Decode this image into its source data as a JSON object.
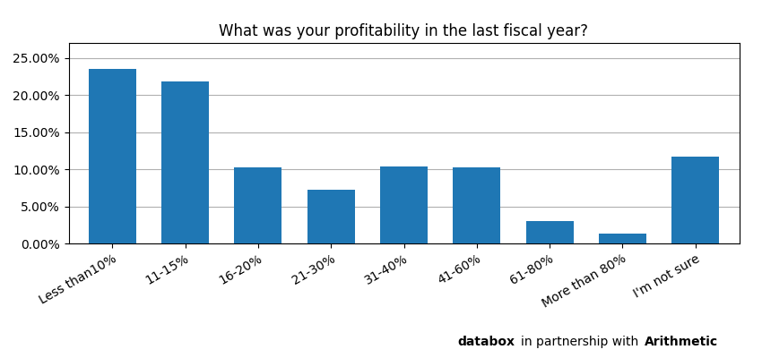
{
  "chart_data": {
    "type": "bar",
    "title": "What was your profitability in the last fiscal year?",
    "categories": [
      "Less than10%",
      "11-15%",
      "16-20%",
      "21-30%",
      "31-40%",
      "41-60%",
      "61-80%",
      "More than 80%",
      "I'm not sure"
    ],
    "values": [
      23.5,
      21.8,
      10.3,
      7.2,
      10.4,
      10.3,
      3.0,
      1.3,
      11.7
    ],
    "ylim": [
      0,
      27
    ],
    "yticks": [
      {
        "value": 0,
        "label": "0.00%"
      },
      {
        "value": 5,
        "label": "5.00%"
      },
      {
        "value": 10,
        "label": "10.00%"
      },
      {
        "value": 15,
        "label": "15.00%"
      },
      {
        "value": 20,
        "label": "20.00%"
      },
      {
        "value": 25,
        "label": "25.00%"
      }
    ],
    "grid": true,
    "annotations": [
      "databox",
      "in partnership with",
      "Arithmetic"
    ]
  }
}
